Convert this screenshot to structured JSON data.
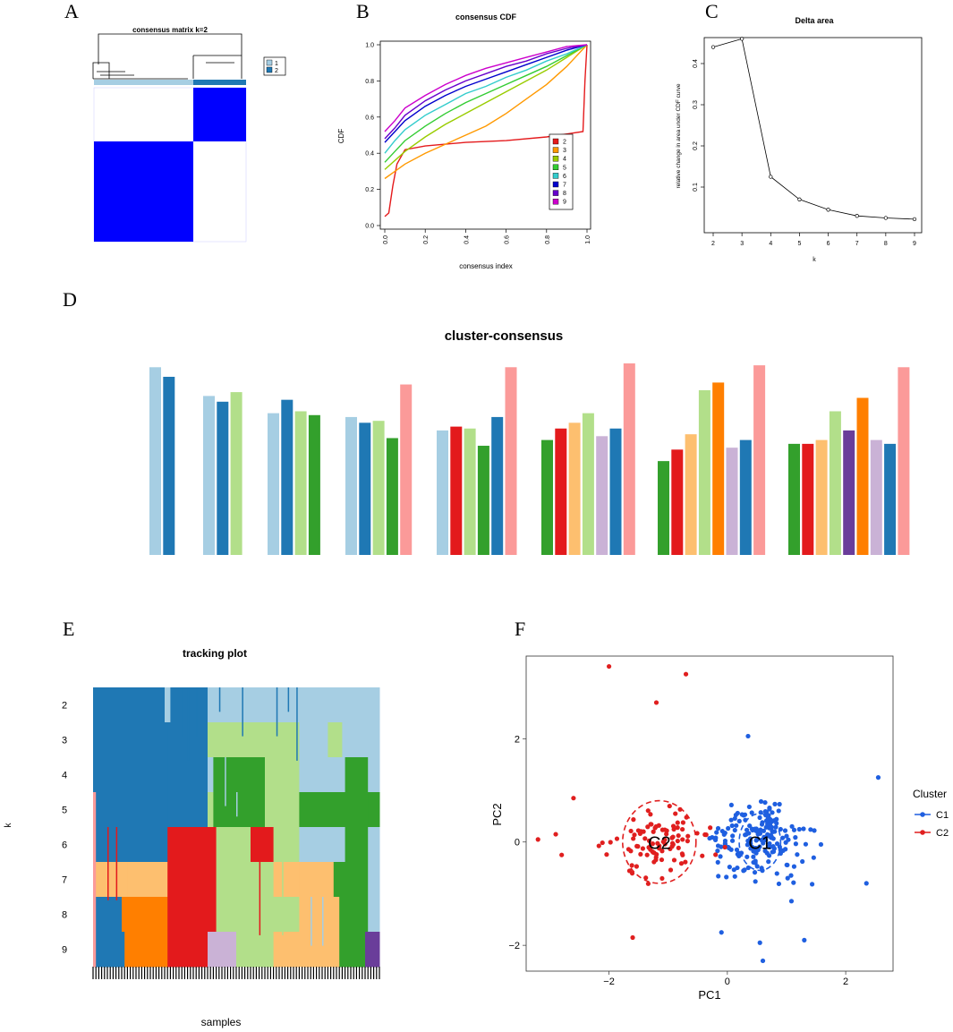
{
  "panel_letters": [
    "A",
    "B",
    "C",
    "D",
    "E",
    "F"
  ],
  "chart_data": [
    {
      "panel": "A",
      "type": "heatmap",
      "title": "consensus matrix k=2",
      "legend": [
        "1",
        "2"
      ],
      "colors": {
        "cluster1": "#a6cee3",
        "cluster2": "#1f78b4",
        "fill": "#0000ff"
      },
      "blocks": [
        {
          "cluster": "2",
          "fraction": 0.35
        },
        {
          "cluster": "1",
          "fraction": 0.65
        }
      ]
    },
    {
      "panel": "B",
      "type": "line",
      "title": "consensus CDF",
      "xlabel": "consensus index",
      "ylabel": "CDF",
      "xlim": [
        0,
        1
      ],
      "ylim": [
        0,
        1
      ],
      "xticks": [
        "0.0",
        "0.2",
        "0.4",
        "0.6",
        "0.8",
        "1.0"
      ],
      "yticks": [
        "0.0",
        "0.2",
        "0.4",
        "0.6",
        "0.8",
        "1.0"
      ],
      "series": [
        {
          "name": "2",
          "color": "#e41a1c",
          "points": [
            [
              0,
              0.05
            ],
            [
              0.02,
              0.07
            ],
            [
              0.04,
              0.22
            ],
            [
              0.06,
              0.34
            ],
            [
              0.1,
              0.42
            ],
            [
              0.2,
              0.44
            ],
            [
              0.4,
              0.46
            ],
            [
              0.6,
              0.47
            ],
            [
              0.8,
              0.49
            ],
            [
              0.98,
              0.52
            ],
            [
              0.99,
              0.8
            ],
            [
              1.0,
              1.0
            ]
          ]
        },
        {
          "name": "3",
          "color": "#ff9900",
          "points": [
            [
              0,
              0.26
            ],
            [
              0.05,
              0.3
            ],
            [
              0.1,
              0.34
            ],
            [
              0.2,
              0.4
            ],
            [
              0.3,
              0.45
            ],
            [
              0.4,
              0.5
            ],
            [
              0.5,
              0.55
            ],
            [
              0.6,
              0.62
            ],
            [
              0.7,
              0.7
            ],
            [
              0.8,
              0.78
            ],
            [
              0.9,
              0.88
            ],
            [
              1.0,
              1.0
            ]
          ]
        },
        {
          "name": "4",
          "color": "#99cc00",
          "points": [
            [
              0,
              0.31
            ],
            [
              0.05,
              0.36
            ],
            [
              0.1,
              0.41
            ],
            [
              0.2,
              0.49
            ],
            [
              0.3,
              0.56
            ],
            [
              0.4,
              0.62
            ],
            [
              0.5,
              0.68
            ],
            [
              0.6,
              0.74
            ],
            [
              0.7,
              0.8
            ],
            [
              0.8,
              0.86
            ],
            [
              0.9,
              0.93
            ],
            [
              1.0,
              1.0
            ]
          ]
        },
        {
          "name": "5",
          "color": "#33cc33",
          "points": [
            [
              0,
              0.35
            ],
            [
              0.05,
              0.41
            ],
            [
              0.1,
              0.47
            ],
            [
              0.2,
              0.55
            ],
            [
              0.3,
              0.62
            ],
            [
              0.4,
              0.68
            ],
            [
              0.5,
              0.73
            ],
            [
              0.6,
              0.78
            ],
            [
              0.7,
              0.83
            ],
            [
              0.8,
              0.88
            ],
            [
              0.9,
              0.94
            ],
            [
              1.0,
              1.0
            ]
          ]
        },
        {
          "name": "6",
          "color": "#33cccc",
          "points": [
            [
              0,
              0.4
            ],
            [
              0.05,
              0.47
            ],
            [
              0.1,
              0.53
            ],
            [
              0.2,
              0.61
            ],
            [
              0.3,
              0.67
            ],
            [
              0.4,
              0.73
            ],
            [
              0.5,
              0.77
            ],
            [
              0.6,
              0.82
            ],
            [
              0.7,
              0.86
            ],
            [
              0.8,
              0.91
            ],
            [
              0.9,
              0.95
            ],
            [
              1.0,
              1.0
            ]
          ]
        },
        {
          "name": "7",
          "color": "#0000cc",
          "points": [
            [
              0,
              0.46
            ],
            [
              0.05,
              0.52
            ],
            [
              0.1,
              0.58
            ],
            [
              0.2,
              0.66
            ],
            [
              0.3,
              0.72
            ],
            [
              0.4,
              0.77
            ],
            [
              0.5,
              0.81
            ],
            [
              0.6,
              0.85
            ],
            [
              0.7,
              0.89
            ],
            [
              0.8,
              0.93
            ],
            [
              0.9,
              0.97
            ],
            [
              1.0,
              1.0
            ]
          ]
        },
        {
          "name": "8",
          "color": "#6600cc",
          "points": [
            [
              0,
              0.48
            ],
            [
              0.05,
              0.54
            ],
            [
              0.1,
              0.61
            ],
            [
              0.2,
              0.69
            ],
            [
              0.3,
              0.75
            ],
            [
              0.4,
              0.8
            ],
            [
              0.5,
              0.84
            ],
            [
              0.6,
              0.88
            ],
            [
              0.7,
              0.91
            ],
            [
              0.8,
              0.95
            ],
            [
              0.9,
              0.98
            ],
            [
              1.0,
              1.0
            ]
          ]
        },
        {
          "name": "9",
          "color": "#cc00cc",
          "points": [
            [
              0,
              0.52
            ],
            [
              0.05,
              0.58
            ],
            [
              0.1,
              0.65
            ],
            [
              0.2,
              0.72
            ],
            [
              0.3,
              0.78
            ],
            [
              0.4,
              0.83
            ],
            [
              0.5,
              0.87
            ],
            [
              0.6,
              0.9
            ],
            [
              0.7,
              0.93
            ],
            [
              0.8,
              0.96
            ],
            [
              0.9,
              0.99
            ],
            [
              1.0,
              1.0
            ]
          ]
        }
      ]
    },
    {
      "panel": "C",
      "type": "line",
      "title": "Delta area",
      "xlabel": "k",
      "ylabel": "relative change in area under CDF curve",
      "xlim": [
        2,
        9
      ],
      "ylim": [
        0,
        0.45
      ],
      "xticks": [
        "2",
        "3",
        "4",
        "5",
        "6",
        "7",
        "8",
        "9"
      ],
      "yticks": [
        "0.1",
        "0.2",
        "0.3",
        "0.4"
      ],
      "x": [
        2,
        3,
        4,
        5,
        6,
        7,
        8,
        9
      ],
      "values": [
        0.44,
        0.46,
        0.125,
        0.07,
        0.045,
        0.03,
        0.025,
        0.022
      ]
    },
    {
      "panel": "D",
      "type": "bar",
      "title": "cluster-consensus",
      "ylim": [
        0,
        1
      ],
      "colors": [
        "#a6cee3",
        "#1f78b4",
        "#b2df8a",
        "#33a02c",
        "#fb9a99",
        "#e31a1c",
        "#fdbf6f",
        "#ff7f00",
        "#cab2d6",
        "#6a3d9a"
      ],
      "groups": [
        {
          "k": 2,
          "bars": [
            {
              "c": 0,
              "v": 0.98
            },
            {
              "c": 1,
              "v": 0.93
            }
          ]
        },
        {
          "k": 3,
          "bars": [
            {
              "c": 0,
              "v": 0.83
            },
            {
              "c": 1,
              "v": 0.8
            },
            {
              "c": 2,
              "v": 0.85
            }
          ]
        },
        {
          "k": 4,
          "bars": [
            {
              "c": 0,
              "v": 0.74
            },
            {
              "c": 1,
              "v": 0.81
            },
            {
              "c": 2,
              "v": 0.75
            },
            {
              "c": 3,
              "v": 0.73
            }
          ]
        },
        {
          "k": 5,
          "bars": [
            {
              "c": 0,
              "v": 0.72
            },
            {
              "c": 1,
              "v": 0.69
            },
            {
              "c": 2,
              "v": 0.7
            },
            {
              "c": 3,
              "v": 0.61
            },
            {
              "c": 4,
              "v": 0.89
            }
          ]
        },
        {
          "k": 6,
          "bars": [
            {
              "c": 0,
              "v": 0.65
            },
            {
              "c": 5,
              "v": 0.67
            },
            {
              "c": 2,
              "v": 0.66
            },
            {
              "c": 3,
              "v": 0.57
            },
            {
              "c": 1,
              "v": 0.72
            },
            {
              "c": 4,
              "v": 0.98
            }
          ]
        },
        {
          "k": 7,
          "bars": [
            {
              "c": 3,
              "v": 0.6
            },
            {
              "c": 5,
              "v": 0.66
            },
            {
              "c": 6,
              "v": 0.69
            },
            {
              "c": 2,
              "v": 0.74
            },
            {
              "c": 8,
              "v": 0.62
            },
            {
              "c": 1,
              "v": 0.66
            },
            {
              "c": 4,
              "v": 1.0
            }
          ]
        },
        {
          "k": 8,
          "bars": [
            {
              "c": 3,
              "v": 0.49
            },
            {
              "c": 5,
              "v": 0.55
            },
            {
              "c": 6,
              "v": 0.63
            },
            {
              "c": 2,
              "v": 0.86
            },
            {
              "c": 7,
              "v": 0.9
            },
            {
              "c": 8,
              "v": 0.56
            },
            {
              "c": 1,
              "v": 0.6
            },
            {
              "c": 4,
              "v": 0.99
            }
          ]
        },
        {
          "k": 9,
          "bars": [
            {
              "c": 3,
              "v": 0.58
            },
            {
              "c": 5,
              "v": 0.58
            },
            {
              "c": 6,
              "v": 0.6
            },
            {
              "c": 2,
              "v": 0.75
            },
            {
              "c": 9,
              "v": 0.65
            },
            {
              "c": 7,
              "v": 0.82
            },
            {
              "c": 8,
              "v": 0.6
            },
            {
              "c": 1,
              "v": 0.58
            },
            {
              "c": 4,
              "v": 0.98
            }
          ]
        }
      ]
    },
    {
      "panel": "E",
      "type": "heatmap",
      "title": "tracking plot",
      "xlabel": "samples",
      "ylabel": "k",
      "row_labels": [
        "2",
        "3",
        "4",
        "5",
        "6",
        "7",
        "8",
        "9"
      ]
    },
    {
      "panel": "F",
      "type": "scatter",
      "xlabel": "PC1",
      "ylabel": "PC2",
      "xlim": [
        -3.4,
        2.8
      ],
      "ylim": [
        -2.5,
        3.6
      ],
      "xticks": [
        "−2",
        "0",
        "2"
      ],
      "yticks": [
        "−2",
        "0",
        "2"
      ],
      "legend_title": "Cluster",
      "series": [
        {
          "name": "C1",
          "color": "#1f5fe0",
          "center": [
            0.55,
            0.0
          ]
        },
        {
          "name": "C2",
          "color": "#e01f1f",
          "center": [
            -1.15,
            0.0
          ]
        }
      ]
    }
  ]
}
